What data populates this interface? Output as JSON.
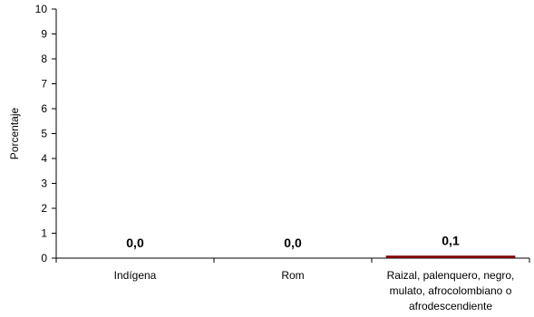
{
  "chart_data": {
    "type": "bar",
    "categories": [
      "Indígena",
      "Rom",
      "Raizal, palenquero, negro, mulato, afrocolombiano o afrodescendiente"
    ],
    "category_label_lines": [
      [
        "Indígena"
      ],
      [
        "Rom"
      ],
      [
        "Raizal, palenquero, negro,",
        "mulato, afrocolombiano o",
        "afrodescendiente"
      ]
    ],
    "values": [
      0.0,
      0.0,
      0.1
    ],
    "data_labels": [
      "0,0",
      "0,0",
      "0,1"
    ],
    "ylabel": "Porcentaje",
    "xlabel": "",
    "title": "",
    "ylim": [
      0,
      10
    ],
    "yticks": [
      "0",
      "1",
      "2",
      "3",
      "4",
      "5",
      "6",
      "7",
      "8",
      "9",
      "10"
    ],
    "grid": false,
    "legend": "none",
    "bar_color": "#800000"
  }
}
